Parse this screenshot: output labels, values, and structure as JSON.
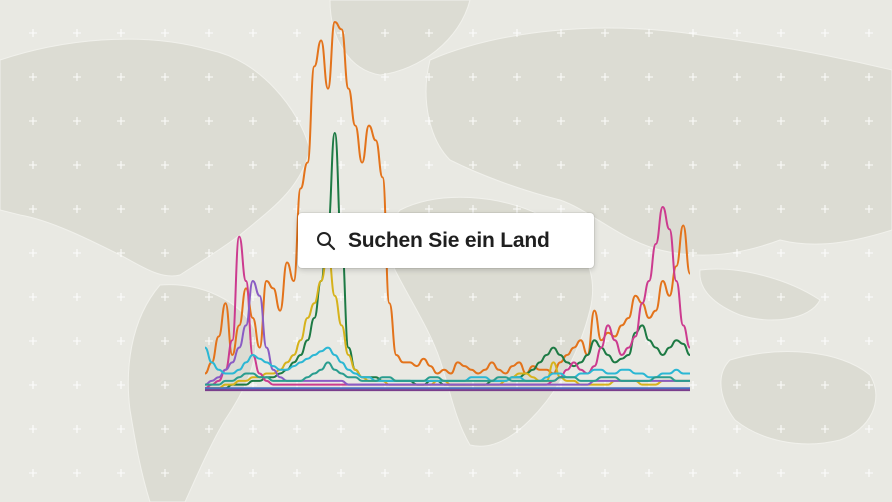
{
  "search": {
    "placeholder": "Suchen Sie ein Land",
    "icon": "search-icon"
  },
  "background": {
    "color": "#e9e9e3",
    "land_color": "#dcdcd3",
    "grid_marker_color": "#ffffff",
    "map": "world-map"
  },
  "chart_data": {
    "type": "line",
    "series": [
      {
        "color": "#e3731b",
        "values": [
          5,
          8,
          15,
          24,
          10,
          18,
          28,
          20,
          12,
          30,
          28,
          22,
          35,
          30,
          55,
          62,
          88,
          95,
          82,
          100,
          98,
          82,
          72,
          62,
          72,
          68,
          58,
          24,
          10,
          8,
          8,
          7,
          9,
          7,
          5,
          6,
          5,
          8,
          7,
          6,
          5,
          6,
          8,
          6,
          5,
          7,
          8,
          5,
          7,
          6,
          6,
          5,
          8,
          10,
          12,
          14,
          10,
          22,
          14,
          16,
          15,
          18,
          20,
          26,
          24,
          20,
          22,
          30,
          26,
          34,
          45,
          32
        ]
      },
      {
        "color": "#1d7a44",
        "values": [
          1,
          1,
          1,
          1,
          2,
          2,
          2,
          3,
          3,
          4,
          4,
          5,
          6,
          8,
          10,
          14,
          20,
          30,
          45,
          70,
          40,
          12,
          6,
          4,
          4,
          4,
          3,
          3,
          3,
          3,
          3,
          2,
          2,
          3,
          3,
          2,
          2,
          2,
          2,
          2,
          2,
          2,
          3,
          3,
          3,
          4,
          4,
          5,
          6,
          8,
          10,
          12,
          10,
          8,
          7,
          8,
          10,
          14,
          12,
          10,
          8,
          9,
          10,
          16,
          18,
          14,
          12,
          10,
          12,
          14,
          13,
          10
        ]
      },
      {
        "color": "#d6b21b",
        "values": [
          1,
          1,
          1,
          2,
          2,
          3,
          3,
          4,
          4,
          5,
          5,
          6,
          8,
          10,
          14,
          20,
          24,
          30,
          38,
          26,
          18,
          10,
          6,
          4,
          3,
          3,
          3,
          2,
          2,
          2,
          2,
          2,
          2,
          2,
          3,
          3,
          2,
          2,
          2,
          2,
          2,
          2,
          2,
          2,
          3,
          4,
          5,
          5,
          4,
          3,
          3,
          8,
          4,
          3,
          3,
          2,
          2,
          2,
          2,
          2,
          3,
          3,
          3,
          3,
          2,
          2,
          2,
          3,
          3,
          3,
          3,
          3
        ]
      },
      {
        "color": "#cc3b8f",
        "values": [
          1,
          2,
          3,
          6,
          14,
          42,
          30,
          10,
          5,
          3,
          2,
          2,
          2,
          2,
          2,
          2,
          2,
          2,
          2,
          2,
          2,
          2,
          2,
          2,
          2,
          2,
          2,
          2,
          2,
          2,
          2,
          2,
          2,
          2,
          2,
          2,
          2,
          2,
          2,
          2,
          2,
          2,
          2,
          2,
          2,
          2,
          2,
          2,
          2,
          2,
          2,
          3,
          4,
          6,
          8,
          6,
          5,
          7,
          12,
          18,
          14,
          10,
          12,
          15,
          24,
          30,
          40,
          50,
          44,
          30,
          18,
          12
        ]
      },
      {
        "color": "#8a5cc4",
        "values": [
          2,
          3,
          4,
          6,
          8,
          12,
          18,
          30,
          26,
          12,
          6,
          4,
          3,
          3,
          3,
          3,
          3,
          3,
          3,
          3,
          3,
          2,
          2,
          2,
          2,
          2,
          2,
          2,
          2,
          2,
          2,
          2,
          2,
          2,
          2,
          2,
          2,
          2,
          2,
          2,
          2,
          2,
          2,
          2,
          2,
          2,
          2,
          2,
          2,
          2,
          2,
          2,
          2,
          2,
          2,
          2,
          2,
          3,
          3,
          3,
          3,
          3,
          3,
          3,
          3,
          3,
          3,
          3,
          3,
          3,
          3,
          3
        ]
      },
      {
        "color": "#2bb7d4",
        "values": [
          12,
          8,
          6,
          5,
          5,
          6,
          8,
          10,
          9,
          8,
          7,
          6,
          6,
          7,
          8,
          9,
          10,
          11,
          12,
          10,
          8,
          6,
          5,
          4,
          4,
          3,
          3,
          3,
          3,
          3,
          3,
          3,
          3,
          3,
          3,
          3,
          3,
          3,
          3,
          4,
          4,
          4,
          3,
          3,
          3,
          4,
          4,
          3,
          3,
          3,
          4,
          5,
          5,
          4,
          4,
          5,
          5,
          6,
          6,
          5,
          5,
          6,
          6,
          5,
          5,
          4,
          4,
          5,
          5,
          6,
          5,
          5
        ]
      },
      {
        "color": "#2a9d8f",
        "values": [
          2,
          2,
          2,
          3,
          3,
          4,
          5,
          5,
          4,
          4,
          3,
          3,
          3,
          3,
          3,
          4,
          5,
          6,
          8,
          6,
          5,
          4,
          4,
          3,
          3,
          3,
          4,
          4,
          3,
          3,
          3,
          3,
          3,
          4,
          4,
          3,
          3,
          3,
          3,
          3,
          3,
          3,
          3,
          4,
          4,
          3,
          3,
          3,
          3,
          3,
          3,
          3,
          4,
          4,
          4,
          3,
          3,
          3,
          4,
          4,
          4,
          3,
          3,
          3,
          3,
          3,
          4,
          4,
          4,
          3,
          3,
          3
        ]
      },
      {
        "color": "#4a6fbf",
        "values": [
          1,
          1,
          1,
          1,
          1,
          1,
          1,
          1,
          1,
          1,
          1,
          1,
          1,
          1,
          1,
          1,
          1,
          1,
          1,
          1,
          1,
          1,
          1,
          1,
          1,
          1,
          1,
          1,
          1,
          1,
          1,
          1,
          1,
          1,
          1,
          1,
          1,
          1,
          1,
          1,
          1,
          1,
          1,
          1,
          1,
          1,
          1,
          1,
          1,
          1,
          1,
          1,
          1,
          1,
          1,
          1,
          1,
          1,
          1,
          1,
          1,
          1,
          1,
          1,
          1,
          1,
          1,
          1,
          1,
          1,
          1,
          1
        ]
      },
      {
        "color": "#7a3e8c",
        "values": [
          0.5,
          0.5,
          0.5,
          0.5,
          0.5,
          0.5,
          0.5,
          0.5,
          0.5,
          0.5,
          0.5,
          0.5,
          0.5,
          0.5,
          0.5,
          0.5,
          0.5,
          0.5,
          0.5,
          0.5,
          0.5,
          0.5,
          0.5,
          0.5,
          0.5,
          0.5,
          0.5,
          0.5,
          0.5,
          0.5,
          0.5,
          0.5,
          0.5,
          0.5,
          0.5,
          0.5,
          0.5,
          0.5,
          0.5,
          0.5,
          0.5,
          0.5,
          0.5,
          0.5,
          0.5,
          0.5,
          0.5,
          0.5,
          0.5,
          0.5,
          0.5,
          0.5,
          0.5,
          0.5,
          0.5,
          0.5,
          0.5,
          0.5,
          0.5,
          0.5,
          0.5,
          0.5,
          0.5,
          0.5,
          0.5,
          0.5,
          0.5,
          0.5,
          0.5,
          0.5,
          0.5,
          0.5
        ]
      }
    ],
    "ylim": [
      0,
      100
    ],
    "grid": false,
    "legend": "none"
  }
}
